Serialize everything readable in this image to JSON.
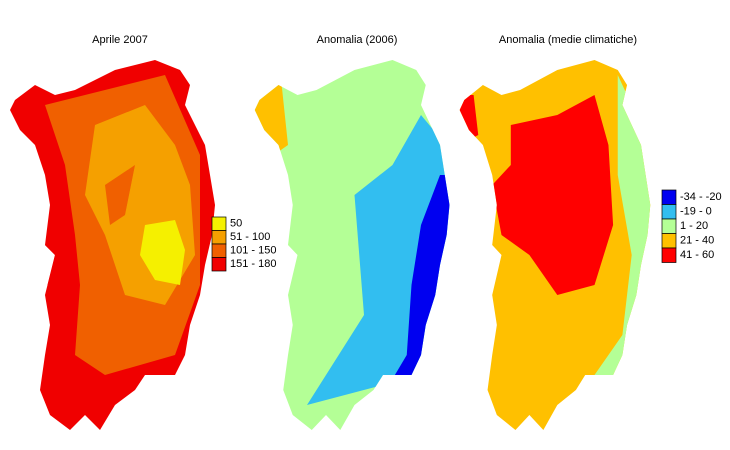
{
  "maps": [
    {
      "title": "Aprile 2007",
      "legend": [
        {
          "label": "50",
          "color": "#f5f000"
        },
        {
          "label": "51 - 100",
          "color": "#f5a000"
        },
        {
          "label": "101 - 150",
          "color": "#f06000"
        },
        {
          "label": "151 - 180",
          "color": "#f00000"
        }
      ]
    },
    {
      "title": "Anomalia (2006)"
    },
    {
      "title": "Anomalia (medie climatiche)",
      "legend": [
        {
          "label": "-34 - -20",
          "color": "#0000f0"
        },
        {
          "label": "-19 - 0",
          "color": "#32bef0"
        },
        {
          "label": "1 - 20",
          "color": "#b4ff96"
        },
        {
          "label": "21 - 40",
          "color": "#ffc000"
        },
        {
          "label": "41 - 60",
          "color": "#ff0000"
        }
      ]
    }
  ]
}
